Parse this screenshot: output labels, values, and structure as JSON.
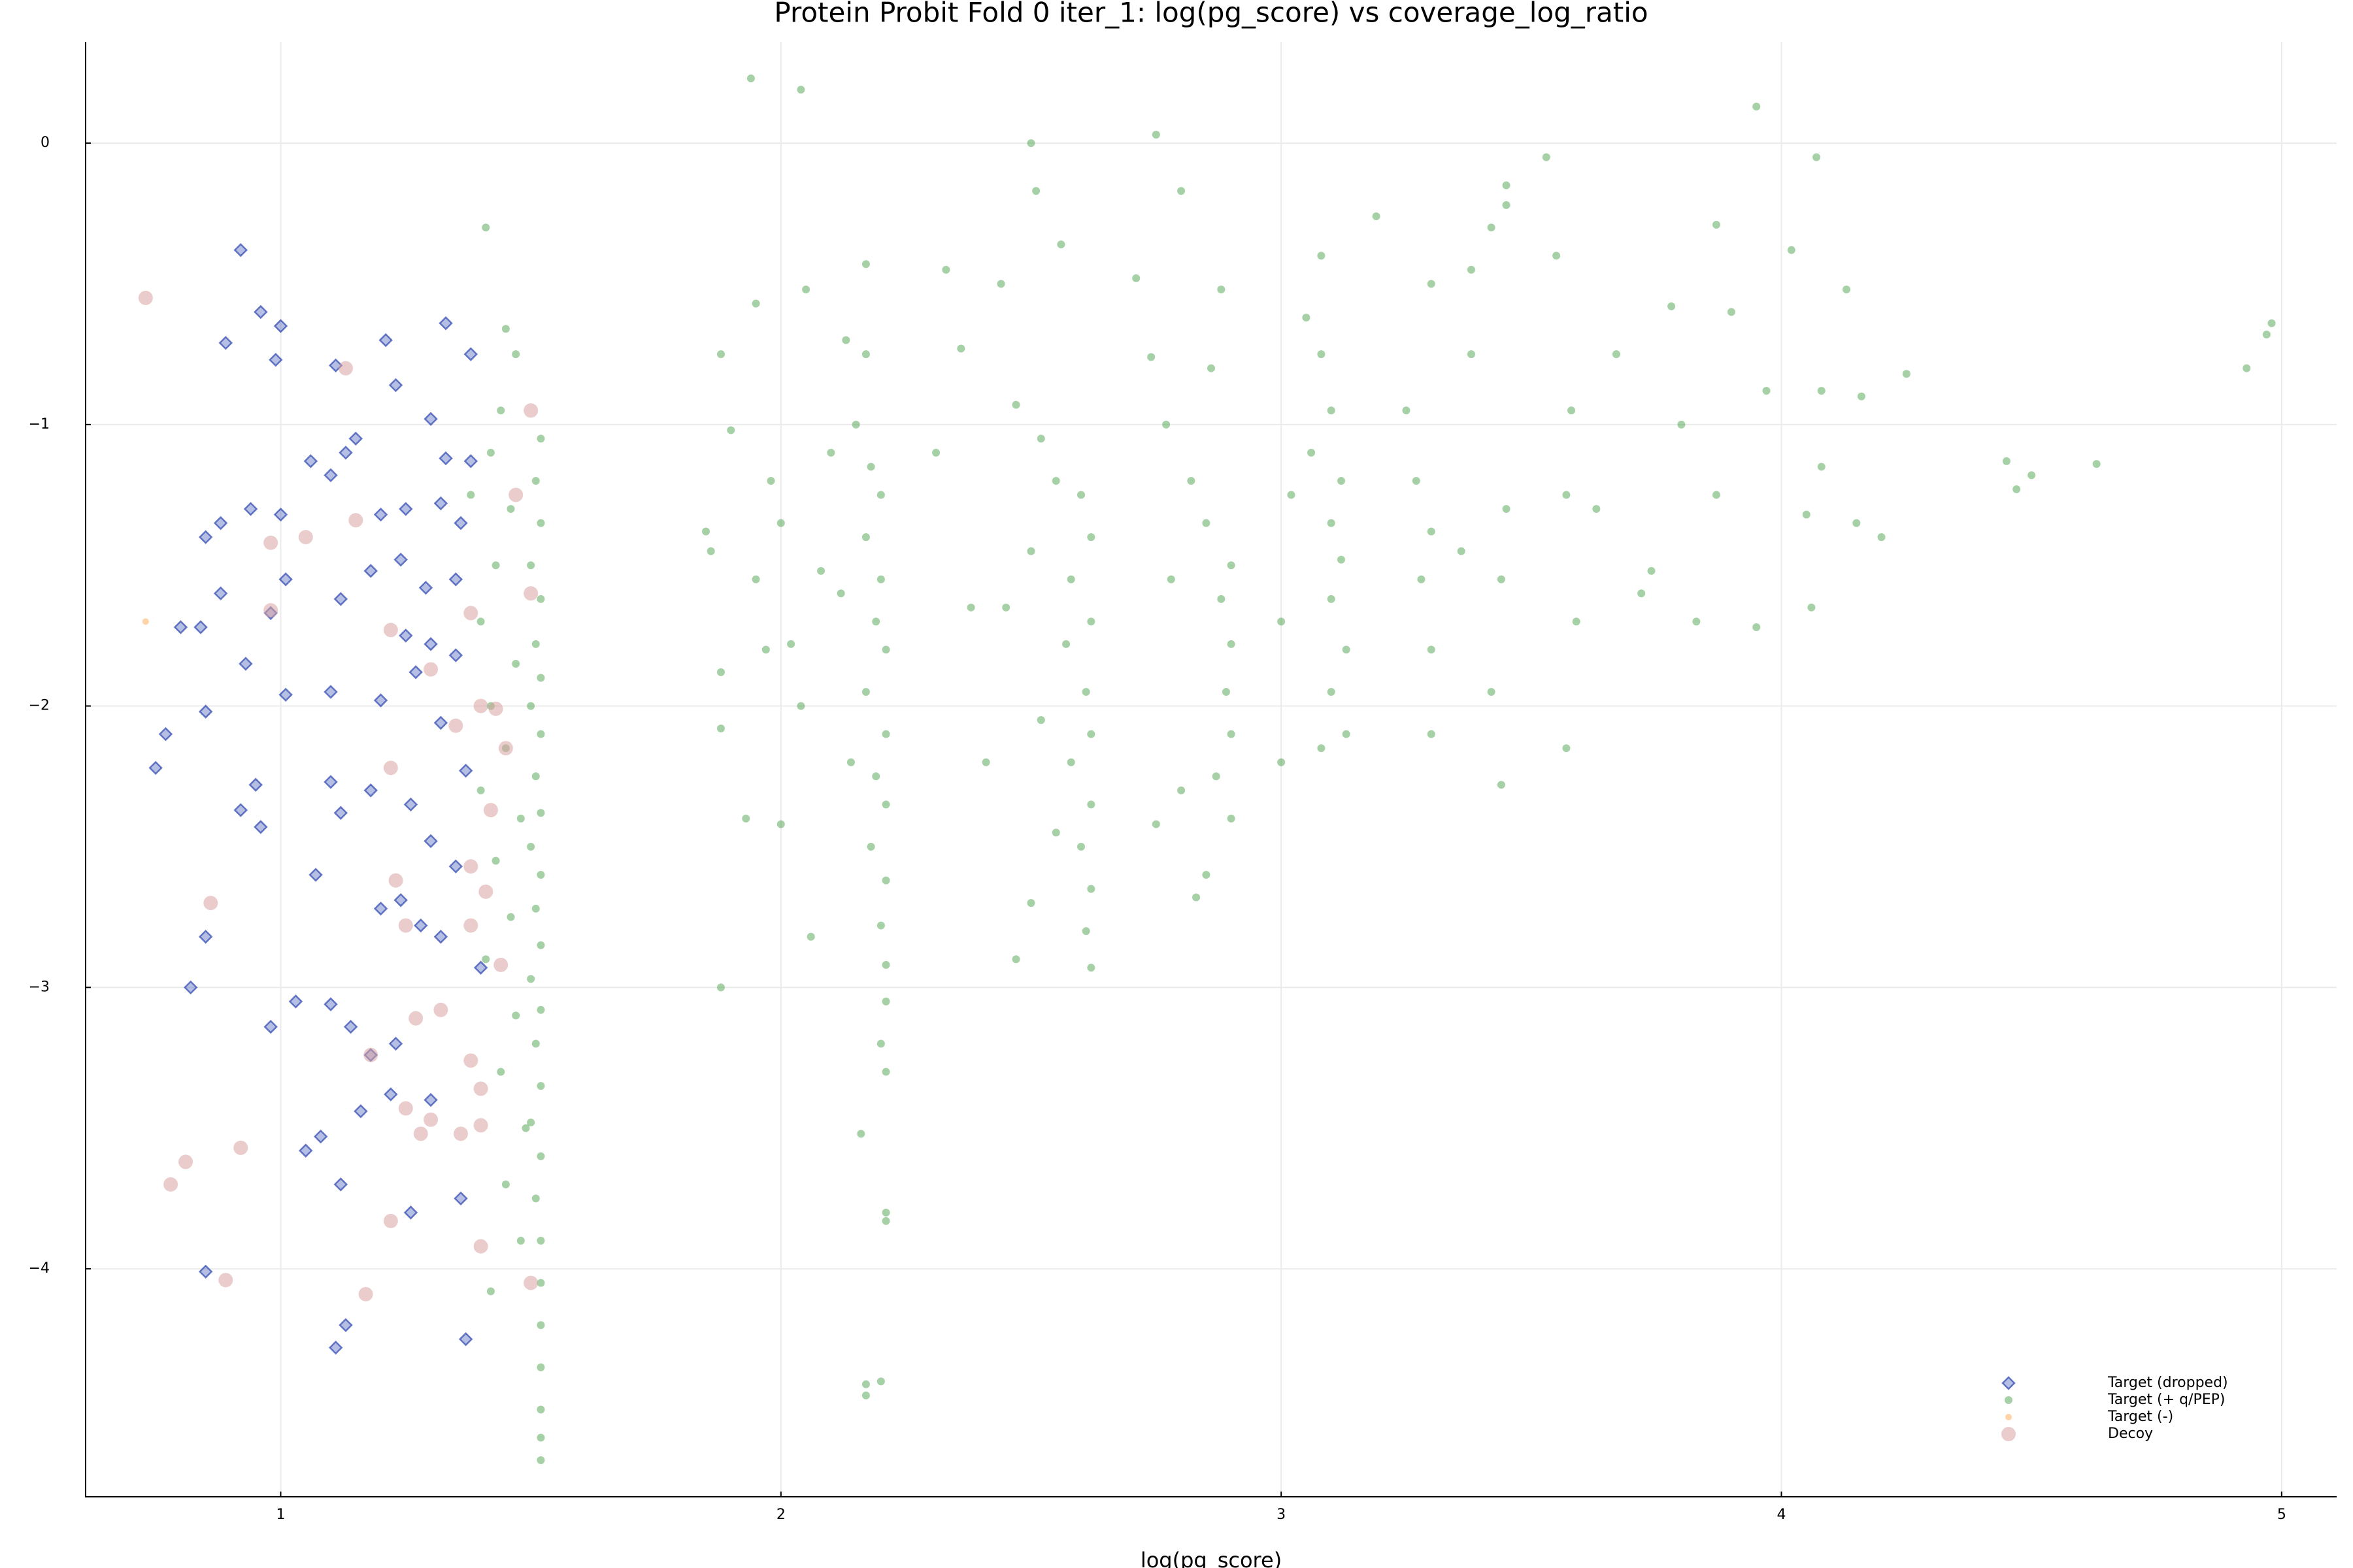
{
  "chart_data": {
    "type": "scatter",
    "title": "Protein Probit Fold 0 iter_1: log(pg_score) vs coverage_log_ratio",
    "xlabel": "log(pg_score)",
    "xlim": [
      0.61,
      5.11
    ],
    "ylim": [
      -4.81,
      0.36
    ],
    "xticks": [
      1,
      2,
      3,
      4,
      5
    ],
    "yticks": [
      0,
      {
        "value": -1,
        "label": "−1"
      },
      {
        "value": -2,
        "label": "−2"
      },
      {
        "value": -3,
        "label": "−3"
      },
      {
        "value": -4,
        "label": "−4"
      }
    ],
    "grid": true,
    "legend": "bottom-right",
    "series": [
      {
        "name": "Target (dropped)",
        "color": "#2c45b0",
        "marker": "diamond",
        "x": [
          0.92,
          0.96,
          0.89,
          1.0,
          0.99,
          1.11,
          1.21,
          1.33,
          1.38,
          1.23,
          1.15,
          1.1,
          1.13,
          1.06,
          1.3,
          1.33,
          1.38,
          0.94,
          1.0,
          0.85,
          0.88,
          1.2,
          1.25,
          1.32,
          1.36,
          0.88,
          1.01,
          1.12,
          1.18,
          1.24,
          1.29,
          1.35,
          0.8,
          0.84,
          0.93,
          0.98,
          1.25,
          1.3,
          1.35,
          1.27,
          0.77,
          0.85,
          1.01,
          1.1,
          1.2,
          1.32,
          1.37,
          0.75,
          0.95,
          1.1,
          1.18,
          1.26,
          0.92,
          0.96,
          1.12,
          1.3,
          1.35,
          1.07,
          1.2,
          1.24,
          1.28,
          1.32,
          0.85,
          1.4,
          0.82,
          1.03,
          1.1,
          0.98,
          1.14,
          1.23,
          1.18,
          1.22,
          1.3,
          1.16,
          1.08,
          1.05,
          1.12,
          1.26,
          1.36,
          0.85,
          1.13,
          1.11,
          1.37
        ],
        "values": [
          -0.38,
          -0.6,
          -0.71,
          -0.65,
          -0.77,
          -0.79,
          -0.7,
          -0.64,
          -0.75,
          -0.86,
          -1.05,
          -1.18,
          -1.1,
          -1.13,
          -0.98,
          -1.12,
          -1.13,
          -1.3,
          -1.32,
          -1.4,
          -1.35,
          -1.32,
          -1.3,
          -1.28,
          -1.35,
          -1.6,
          -1.55,
          -1.62,
          -1.52,
          -1.48,
          -1.58,
          -1.55,
          -1.72,
          -1.72,
          -1.85,
          -1.67,
          -1.75,
          -1.78,
          -1.82,
          -1.88,
          -2.1,
          -2.02,
          -1.96,
          -1.95,
          -1.98,
          -2.06,
          -2.23,
          -2.22,
          -2.28,
          -2.27,
          -2.3,
          -2.35,
          -2.37,
          -2.43,
          -2.38,
          -2.48,
          -2.57,
          -2.6,
          -2.72,
          -2.69,
          -2.78,
          -2.82,
          -2.82,
          -2.93,
          -3.0,
          -3.05,
          -3.06,
          -3.14,
          -3.14,
          -3.2,
          -3.24,
          -3.38,
          -3.4,
          -3.44,
          -3.53,
          -3.58,
          -3.7,
          -3.8,
          -3.75,
          -4.01,
          -4.2,
          -4.28,
          -4.25
        ]
      },
      {
        "name": "Target (+ q/PEP)",
        "color": "#3a9a3a",
        "marker": "circle",
        "x": [
          1.52,
          1.51,
          1.52,
          1.5,
          1.52,
          1.51,
          1.52,
          1.5,
          1.52,
          1.51,
          1.52,
          1.5,
          1.52,
          1.51,
          1.52,
          1.5,
          1.52,
          1.51,
          1.52,
          1.5,
          1.52,
          1.51,
          1.52,
          1.52,
          1.52,
          1.52,
          1.52,
          1.52,
          1.52,
          1.41,
          1.45,
          1.47,
          1.44,
          1.42,
          1.38,
          1.46,
          1.43,
          1.4,
          1.47,
          1.42,
          1.45,
          1.4,
          1.48,
          1.43,
          1.46,
          1.41,
          1.47,
          1.44,
          1.49,
          1.45,
          1.48,
          1.42,
          1.94,
          2.04,
          1.95,
          1.88,
          1.9,
          1.85,
          1.86,
          1.98,
          2.0,
          1.95,
          1.97,
          2.02,
          1.88,
          1.88,
          1.93,
          2.0,
          1.88,
          2.05,
          2.08,
          2.04,
          2.06,
          2.17,
          2.13,
          2.17,
          2.15,
          2.18,
          2.2,
          2.17,
          2.2,
          2.19,
          2.21,
          2.17,
          2.21,
          2.19,
          2.21,
          2.18,
          2.21,
          2.2,
          2.21,
          2.21,
          2.2,
          2.21,
          2.16,
          2.21,
          2.21,
          2.17,
          2.2,
          2.17,
          2.1,
          2.12,
          2.14,
          2.33,
          2.36,
          2.44,
          2.5,
          2.51,
          2.56,
          2.47,
          2.52,
          2.55,
          2.6,
          2.62,
          2.58,
          2.62,
          2.57,
          2.61,
          2.62,
          2.58,
          2.62,
          2.6,
          2.62,
          2.61,
          2.62,
          2.5,
          2.45,
          2.52,
          2.41,
          2.55,
          2.5,
          2.47,
          2.38,
          2.31,
          2.75,
          2.8,
          2.71,
          2.74,
          2.86,
          2.88,
          2.77,
          2.82,
          2.85,
          2.9,
          2.88,
          2.9,
          2.89,
          2.9,
          2.87,
          2.9,
          2.85,
          2.83,
          2.78,
          2.8,
          2.75,
          3.08,
          3.05,
          3.08,
          3.1,
          3.06,
          3.12,
          3.1,
          3.12,
          3.1,
          3.13,
          3.1,
          3.13,
          3.08,
          3.0,
          3.0,
          3.02,
          3.19,
          3.25,
          3.3,
          3.38,
          3.42,
          3.45,
          3.45,
          3.27,
          3.3,
          3.28,
          3.3,
          3.3,
          3.36,
          3.45,
          3.44,
          3.42,
          3.44,
          3.38,
          3.53,
          3.55,
          3.58,
          3.57,
          3.59,
          3.57,
          3.67,
          3.72,
          3.78,
          3.8,
          3.83,
          3.87,
          3.9,
          3.95,
          3.97,
          3.95,
          4.02,
          4.07,
          4.08,
          4.08,
          4.05,
          4.06,
          4.13,
          4.16,
          4.15,
          4.25,
          4.2,
          3.63,
          3.74,
          3.87,
          4.45,
          4.47,
          4.5,
          4.63,
          4.93,
          4.98,
          4.97
        ],
        "values": [
          -1.05,
          -1.2,
          -1.35,
          -1.5,
          -1.62,
          -1.78,
          -1.9,
          -2.0,
          -2.1,
          -2.25,
          -2.38,
          -2.5,
          -2.6,
          -2.72,
          -2.85,
          -2.97,
          -3.08,
          -3.2,
          -3.35,
          -3.48,
          -3.6,
          -3.75,
          -3.9,
          -4.05,
          -4.2,
          -4.35,
          -4.5,
          -4.6,
          -4.68,
          -0.3,
          -0.66,
          -0.75,
          -0.95,
          -1.1,
          -1.25,
          -1.3,
          -1.5,
          -1.7,
          -1.85,
          -2.0,
          -2.15,
          -2.3,
          -2.4,
          -2.55,
          -2.75,
          -2.9,
          -3.1,
          -3.3,
          -3.5,
          -3.7,
          -3.9,
          -4.08,
          0.23,
          0.19,
          -0.57,
          -0.75,
          -1.02,
          -1.38,
          -1.45,
          -1.2,
          -1.35,
          -1.55,
          -1.8,
          -1.78,
          -1.88,
          -2.08,
          -2.4,
          -2.42,
          -3.0,
          -0.52,
          -1.52,
          -2.0,
          -2.82,
          -0.43,
          -0.7,
          -0.75,
          -1.0,
          -1.15,
          -1.25,
          -1.4,
          -1.55,
          -1.7,
          -1.8,
          -1.95,
          -2.1,
          -2.25,
          -2.35,
          -2.5,
          -2.62,
          -2.78,
          -2.92,
          -3.05,
          -3.2,
          -3.3,
          -3.52,
          -3.8,
          -3.83,
          -4.41,
          -4.4,
          -4.45,
          -1.1,
          -1.6,
          -2.2,
          -0.45,
          -0.73,
          -0.5,
          0.0,
          -0.17,
          -0.36,
          -0.93,
          -1.05,
          -1.2,
          -1.25,
          -1.4,
          -1.55,
          -1.7,
          -1.78,
          -1.95,
          -2.1,
          -2.2,
          -2.35,
          -2.5,
          -2.65,
          -2.8,
          -2.93,
          -1.45,
          -1.65,
          -2.05,
          -2.2,
          -2.45,
          -2.7,
          -2.9,
          -1.65,
          -1.1,
          0.03,
          -0.17,
          -0.48,
          -0.76,
          -0.8,
          -0.52,
          -1.0,
          -1.2,
          -1.35,
          -1.5,
          -1.62,
          -1.78,
          -1.95,
          -2.1,
          -2.25,
          -2.4,
          -2.6,
          -2.68,
          -1.55,
          -2.3,
          -2.42,
          -0.4,
          -0.62,
          -0.75,
          -0.95,
          -1.1,
          -1.2,
          -1.35,
          -1.48,
          -1.62,
          -1.8,
          -1.95,
          -2.1,
          -2.15,
          -1.7,
          -2.2,
          -1.25,
          -0.26,
          -0.95,
          -0.5,
          -0.45,
          -0.3,
          -0.15,
          -0.22,
          -1.2,
          -1.38,
          -1.55,
          -1.8,
          -2.1,
          -1.45,
          -1.3,
          -1.55,
          -1.95,
          -2.28,
          -0.75,
          -0.05,
          -0.4,
          -0.95,
          -1.25,
          -1.7,
          -2.15,
          -0.75,
          -1.6,
          -0.58,
          -1.0,
          -1.7,
          -0.29,
          -0.6,
          0.13,
          -0.88,
          -1.72,
          -0.38,
          -0.05,
          -0.88,
          -1.15,
          -1.32,
          -1.65,
          -0.52,
          -0.9,
          -1.35,
          -0.82,
          -1.4,
          -1.3,
          -1.52,
          -1.25,
          -1.13,
          -1.23,
          -1.18,
          -1.14,
          -0.8,
          -0.64,
          -0.68
        ]
      },
      {
        "name": "Target (-)",
        "color": "#ffb060",
        "marker": "circle",
        "x": [
          0.73
        ],
        "values": [
          -1.7
        ]
      },
      {
        "name": "Decoy",
        "color": "#d9a3a3",
        "marker": "circle",
        "x": [
          0.73,
          1.13,
          1.5,
          1.47,
          0.98,
          1.05,
          1.15,
          0.98,
          1.38,
          1.22,
          1.3,
          1.5,
          1.4,
          1.43,
          1.35,
          1.45,
          1.22,
          1.42,
          1.38,
          1.23,
          0.86,
          1.25,
          1.38,
          1.41,
          1.44,
          1.27,
          1.32,
          1.18,
          1.38,
          1.4,
          1.25,
          1.3,
          1.28,
          1.36,
          1.4,
          0.92,
          0.81,
          0.78,
          1.22,
          1.4,
          0.89,
          1.17,
          1.5
        ],
        "values": [
          -0.55,
          -0.8,
          -0.95,
          -1.25,
          -1.42,
          -1.4,
          -1.34,
          -1.66,
          -1.67,
          -1.73,
          -1.87,
          -1.6,
          -2.0,
          -2.01,
          -2.07,
          -2.15,
          -2.22,
          -2.37,
          -2.57,
          -2.62,
          -2.7,
          -2.78,
          -2.78,
          -2.66,
          -2.92,
          -3.11,
          -3.08,
          -3.24,
          -3.26,
          -3.36,
          -3.43,
          -3.47,
          -3.52,
          -3.52,
          -3.49,
          -3.57,
          -3.62,
          -3.7,
          -3.83,
          -3.92,
          -4.04,
          -4.09,
          -4.05
        ]
      }
    ]
  }
}
